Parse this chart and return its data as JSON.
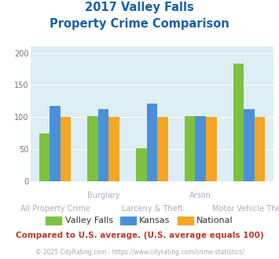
{
  "title_line1": "2017 Valley Falls",
  "title_line2": "Property Crime Comparison",
  "categories": [
    "All Property Crime",
    "Burglary",
    "Larceny & Theft",
    "Arson",
    "Motor Vehicle Theft"
  ],
  "top_labels": [
    "",
    "Burglary",
    "",
    "Arson",
    ""
  ],
  "bottom_labels": [
    "All Property Crime",
    "",
    "Larceny & Theft",
    "",
    "Motor Vehicle Theft"
  ],
  "series": {
    "Valley Falls": [
      75,
      102,
      52,
      101,
      184
    ],
    "Kansas": [
      118,
      112,
      121,
      101,
      113
    ],
    "National": [
      100,
      100,
      100,
      100,
      100
    ]
  },
  "colors": {
    "Valley Falls": "#7dc142",
    "Kansas": "#4a90d9",
    "National": "#f5a623"
  },
  "ylim": [
    0,
    210
  ],
  "yticks": [
    0,
    50,
    100,
    150,
    200
  ],
  "bg_color": "#ddeef4",
  "title_color": "#1a5fa8",
  "xlabel_color": "#b0aac0",
  "footer_text": "Compared to U.S. average. (U.S. average equals 100)",
  "footer_color": "#c0392b",
  "credit_text": "© 2025 CityRating.com - https://www.cityrating.com/crime-statistics/",
  "credit_color": "#aaaaaa",
  "bar_width": 0.22
}
